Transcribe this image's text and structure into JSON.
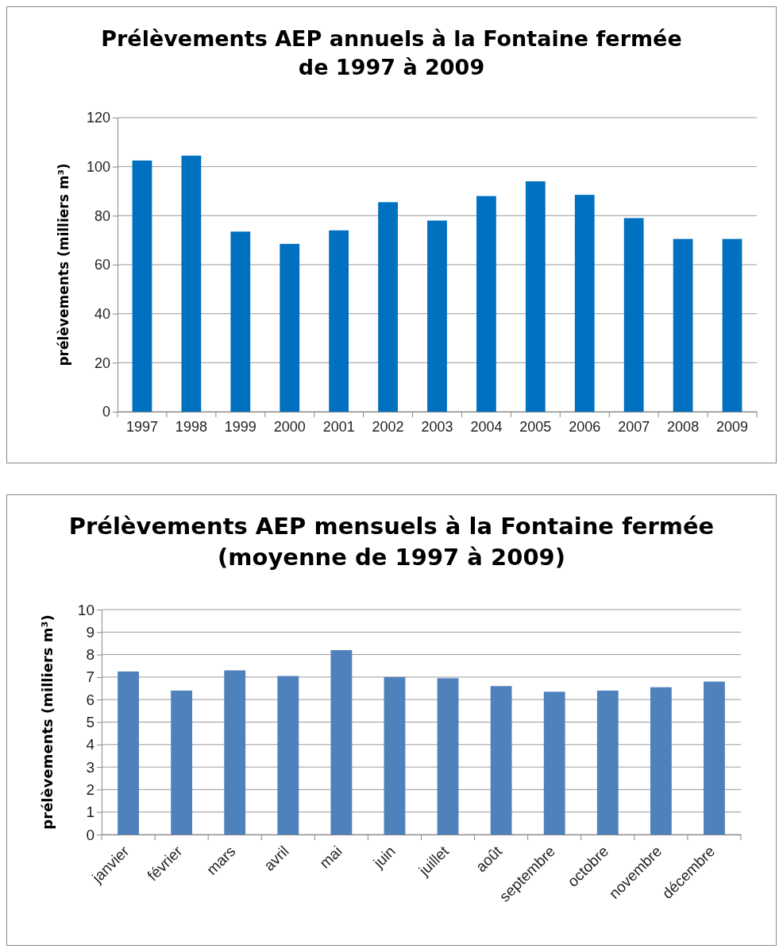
{
  "chart_data": [
    {
      "type": "bar",
      "title": "Prélèvements AEP annuels à la Fontaine fermée",
      "subtitle": "de 1997 à 2009",
      "ylabel": "prélèvements (milliers m³)",
      "categories": [
        "1997",
        "1998",
        "1999",
        "2000",
        "2001",
        "2002",
        "2003",
        "2004",
        "2005",
        "2006",
        "2007",
        "2008",
        "2009"
      ],
      "values": [
        102.5,
        104.5,
        73.5,
        68.5,
        74,
        85.5,
        78,
        88,
        94,
        88.5,
        79,
        70.5,
        70.5
      ],
      "color": "#0070c0",
      "ylim": [
        0,
        120
      ],
      "yticks": [
        0,
        20,
        40,
        60,
        80,
        100,
        120
      ],
      "grid": "y"
    },
    {
      "type": "bar",
      "title": "Prélèvements AEP mensuels à la Fontaine fermée",
      "subtitle": "(moyenne de 1997 à 2009)",
      "ylabel": "prélèvements (milliers m³)",
      "categories": [
        "janvier",
        "février",
        "mars",
        "avril",
        "mai",
        "juin",
        "juillet",
        "août",
        "septembre",
        "octobre",
        "novembre",
        "décembre"
      ],
      "values": [
        7.25,
        6.4,
        7.3,
        7.05,
        8.2,
        7.0,
        6.95,
        6.6,
        6.35,
        6.4,
        6.55,
        6.8
      ],
      "color": "#4f81bd",
      "ylim": [
        0,
        10
      ],
      "yticks": [
        0,
        1,
        2,
        3,
        4,
        5,
        6,
        7,
        8,
        9,
        10
      ],
      "grid": "y"
    }
  ]
}
